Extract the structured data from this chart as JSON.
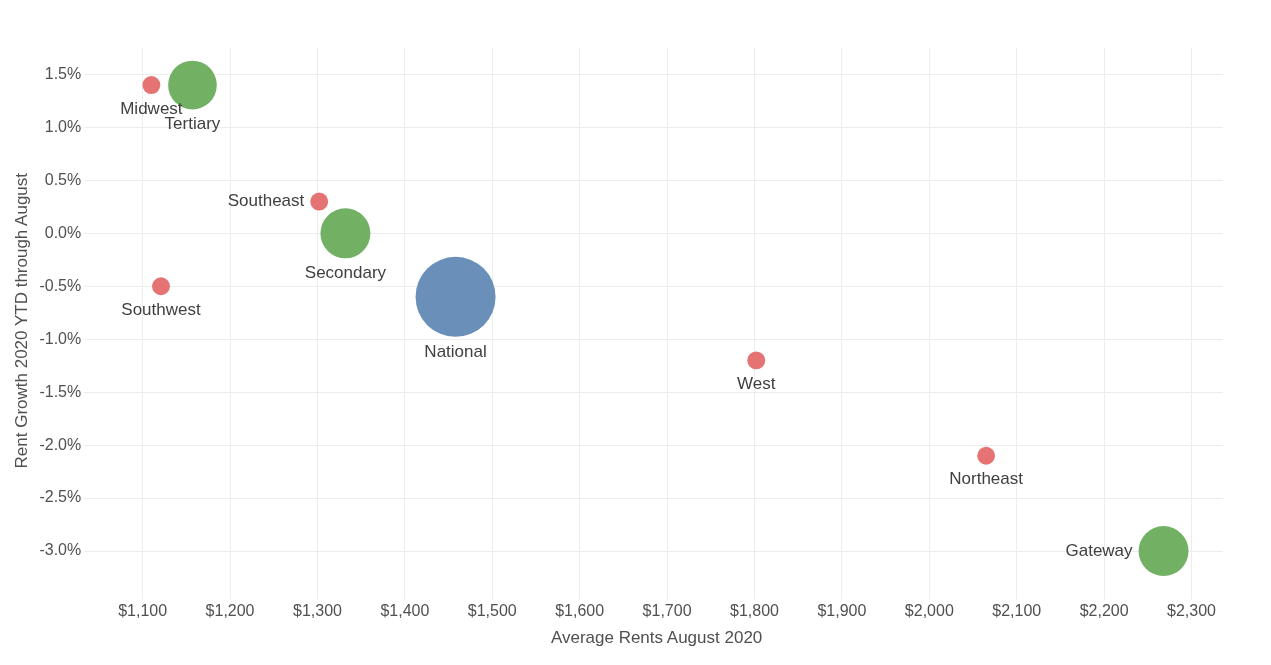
{
  "chart_data": {
    "type": "bubble",
    "xlabel": "Average Rents August 2020",
    "ylabel": "Rent Growth 2020 YTD through August",
    "series": [
      {
        "color": "#e57373",
        "x": [
          1110,
          1302,
          1121,
          1802,
          2065
        ],
        "values": [
          1.4,
          0.3,
          -0.5,
          -1.2,
          -2.1
        ],
        "sizes": [
          0.05,
          0.05,
          0.05,
          0.05,
          0.05
        ]
      },
      {
        "color": "#72b064",
        "x": [
          1157,
          1332,
          2268
        ],
        "values": [
          1.4,
          0.0,
          -3.0
        ],
        "sizes": [
          0.37,
          0.39,
          0.39
        ]
      },
      {
        "color": "#6a8fb8",
        "x": [
          1458
        ],
        "values": [
          -0.6
        ],
        "sizes": [
          1
        ]
      }
    ],
    "annotations": [
      {
        "text": "Midwest",
        "x": 1110,
        "y": 1.4
      },
      {
        "text": "Tertiary",
        "x": 1157,
        "y": 1.4
      },
      {
        "text": "Southeast",
        "x": 1302,
        "y": 0.3
      },
      {
        "text": "Secondary",
        "x": 1332,
        "y": 0.0
      },
      {
        "text": "Southwest",
        "x": 1121,
        "y": -0.5
      },
      {
        "text": "National",
        "x": 1458,
        "y": -0.6
      },
      {
        "text": "West",
        "x": 1802,
        "y": -1.2
      },
      {
        "text": "Northeast",
        "x": 2065,
        "y": -2.1
      },
      {
        "text": "Gateway",
        "x": 2268,
        "y": -3.0
      }
    ],
    "xlim": [
      1040,
      2336
    ],
    "xticks": [
      {
        "value": 1100,
        "label": "$1,100"
      },
      {
        "value": 1200,
        "label": "$1,200"
      },
      {
        "value": 1300,
        "label": "$1,300"
      },
      {
        "value": 1400,
        "label": "$1,400"
      },
      {
        "value": 1500,
        "label": "$1,500"
      },
      {
        "value": 1600,
        "label": "$1,600"
      },
      {
        "value": 1700,
        "label": "$1,700"
      },
      {
        "value": 1800,
        "label": "$1,800"
      },
      {
        "value": 1900,
        "label": "$1,900"
      },
      {
        "value": 2000,
        "label": "$2,000"
      },
      {
        "value": 2100,
        "label": "$2,100"
      },
      {
        "value": 2200,
        "label": "$2,200"
      },
      {
        "value": 2300,
        "label": "$2,300"
      }
    ],
    "ylim": [
      -3.4,
      1.75
    ],
    "yticks": [
      {
        "value": 1.5,
        "label": "1.5%"
      },
      {
        "value": 1.0,
        "label": "1.0%"
      },
      {
        "value": 0.5,
        "label": "0.5%"
      },
      {
        "value": 0.0,
        "label": "0.0%"
      },
      {
        "value": -0.5,
        "label": "-0.5%"
      },
      {
        "value": -1.0,
        "label": "-1.0%"
      },
      {
        "value": -1.5,
        "label": "-1.5%"
      },
      {
        "value": -2.0,
        "label": "-2.0%"
      },
      {
        "value": -2.5,
        "label": "-2.5%"
      },
      {
        "value": -3.0,
        "label": "-3.0%"
      }
    ],
    "grid": true,
    "legend": false
  }
}
